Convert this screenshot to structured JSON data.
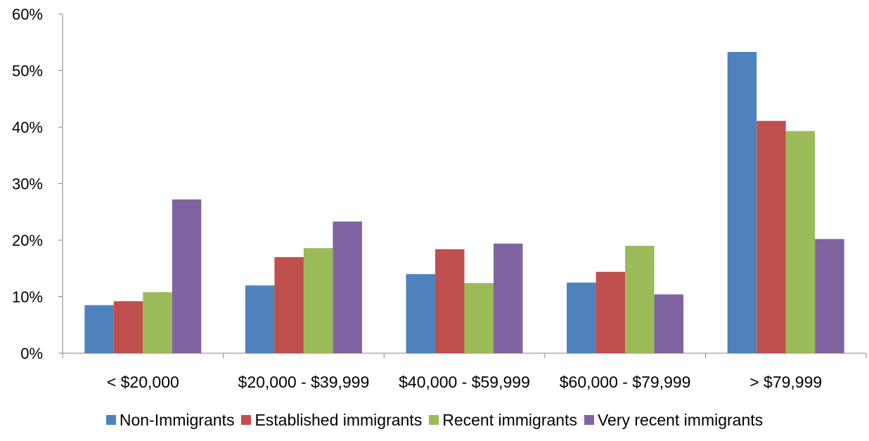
{
  "chart_data": {
    "type": "bar",
    "title": "",
    "xlabel": "",
    "ylabel": "",
    "ylim": [
      0,
      60
    ],
    "y_ticks": [
      "0%",
      "10%",
      "20%",
      "30%",
      "40%",
      "50%",
      "60%"
    ],
    "y_tick_values": [
      0,
      10,
      20,
      30,
      40,
      50,
      60
    ],
    "grid": false,
    "legend_position": "bottom",
    "categories": [
      "< $20,000",
      "$20,000 - $39,999",
      "$40,000 - $59,999",
      "$60,000 - $79,999",
      "> $79,999"
    ],
    "series": [
      {
        "name": "Non-Immigrants",
        "color": "#4F81BD",
        "values": [
          8.5,
          12.0,
          14.0,
          12.5,
          53.3
        ]
      },
      {
        "name": "Established immigrants",
        "color": "#C0504D",
        "values": [
          9.2,
          17.0,
          18.4,
          14.4,
          41.1
        ]
      },
      {
        "name": "Recent immigrants",
        "color": "#9BBB59",
        "values": [
          10.8,
          18.6,
          12.4,
          19.0,
          39.3
        ]
      },
      {
        "name": "Very recent immigrants",
        "color": "#8064A2",
        "values": [
          27.2,
          23.3,
          19.4,
          10.4,
          20.2
        ]
      }
    ]
  }
}
